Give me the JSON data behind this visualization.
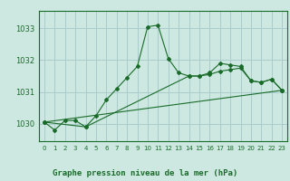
{
  "title": "Graphe pression niveau de la mer (hPa)",
  "bg_color": "#cce8e0",
  "grid_color": "#aacccc",
  "line_color": "#1a6b2a",
  "xlim": [
    -0.5,
    23.5
  ],
  "ylim": [
    1029.45,
    1033.55
  ],
  "yticks": [
    1030,
    1031,
    1032,
    1033
  ],
  "xticks": [
    0,
    1,
    2,
    3,
    4,
    5,
    6,
    7,
    8,
    9,
    10,
    11,
    12,
    13,
    14,
    15,
    16,
    17,
    18,
    19,
    20,
    21,
    22,
    23
  ],
  "series1": {
    "x": [
      0,
      1,
      2,
      3,
      4,
      5,
      6,
      7,
      8,
      9,
      10,
      11,
      12,
      13,
      14,
      15,
      16,
      17,
      18,
      19,
      20,
      21,
      22,
      23
    ],
    "y": [
      1030.05,
      1029.8,
      1030.1,
      1030.1,
      1029.9,
      1030.25,
      1030.75,
      1031.1,
      1031.45,
      1031.8,
      1033.05,
      1033.1,
      1032.05,
      1031.6,
      1031.5,
      1031.5,
      1031.6,
      1031.9,
      1031.85,
      1031.8,
      1031.35,
      1031.3,
      1031.4,
      1031.05
    ]
  },
  "series2": {
    "x": [
      0,
      4,
      14,
      15,
      16,
      17,
      18,
      19,
      20,
      21,
      22,
      23
    ],
    "y": [
      1030.05,
      1029.9,
      1031.5,
      1031.5,
      1031.55,
      1031.65,
      1031.7,
      1031.75,
      1031.35,
      1031.3,
      1031.4,
      1031.05
    ]
  },
  "series3": {
    "x": [
      0,
      23
    ],
    "y": [
      1030.05,
      1031.05
    ]
  }
}
